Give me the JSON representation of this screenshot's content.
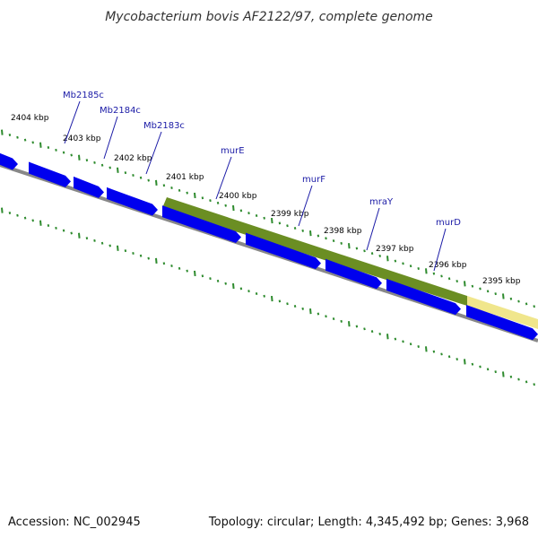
{
  "title": "Mycobacterium bovis AF2122/97, complete genome",
  "accession": "Accession: NC_002945",
  "topology": "Topology: circular; Length: 4,345,492 bp; Genes: 3,968",
  "kbp_labels": [
    "2404 kbp",
    "2403 kbp",
    "2402 kbp",
    "2401 kbp",
    "2400 kbp",
    "2399 kbp",
    "2398 kbp",
    "2397 kbp",
    "2396 kbp",
    "2395 kbp"
  ],
  "gene_labels": [
    "Mb2185c",
    "Mb2184c",
    "Mb2183c",
    "murE",
    "murF",
    "mraY",
    "murD"
  ],
  "colors": {
    "gene": "#0000ee",
    "highlight": "#6b8e23",
    "highlight_light": "#f0e68c",
    "tick": "#2e8b2e",
    "backbone": "#888888",
    "label_line": "#1a1aa6"
  }
}
